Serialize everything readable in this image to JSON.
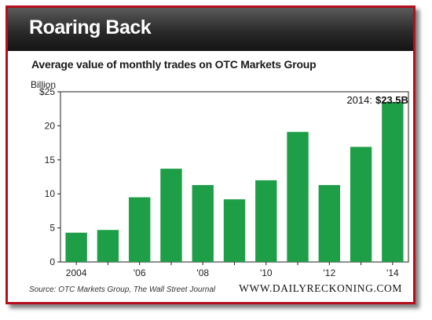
{
  "header": {
    "title": "Roaring Back"
  },
  "chart_data": {
    "type": "bar",
    "subtitle": "Average value of monthly trades on OTC Markets Group",
    "unit_label": "Billion",
    "categories": [
      "2004",
      "2005",
      "2006",
      "2007",
      "2008",
      "2009",
      "2010",
      "2011",
      "2012",
      "2013",
      "2014"
    ],
    "x_tick_labels": [
      "2004",
      "",
      "'06",
      "",
      "'08",
      "",
      "'10",
      "",
      "'12",
      "",
      "'14"
    ],
    "values": [
      4.3,
      4.7,
      9.5,
      13.7,
      11.3,
      9.2,
      12.0,
      19.1,
      11.3,
      16.9,
      23.5
    ],
    "ylim": [
      0,
      25
    ],
    "y_ticks": [
      0,
      5,
      10,
      15,
      20,
      25
    ],
    "y_tick_labels": [
      "0",
      "5",
      "10",
      "15",
      "20",
      "$25"
    ],
    "bar_color": "#1f9e48",
    "grid": false,
    "annotation": {
      "prefix": "2014:",
      "value": "$23.5B"
    }
  },
  "footer": {
    "source": "Source: OTC Markets Group, The Wall Street Journal",
    "brand": "WWW.DAILYRECKONING.COM"
  },
  "colors": {
    "frame": "#b50f1d",
    "header": "#2a2a2a"
  }
}
